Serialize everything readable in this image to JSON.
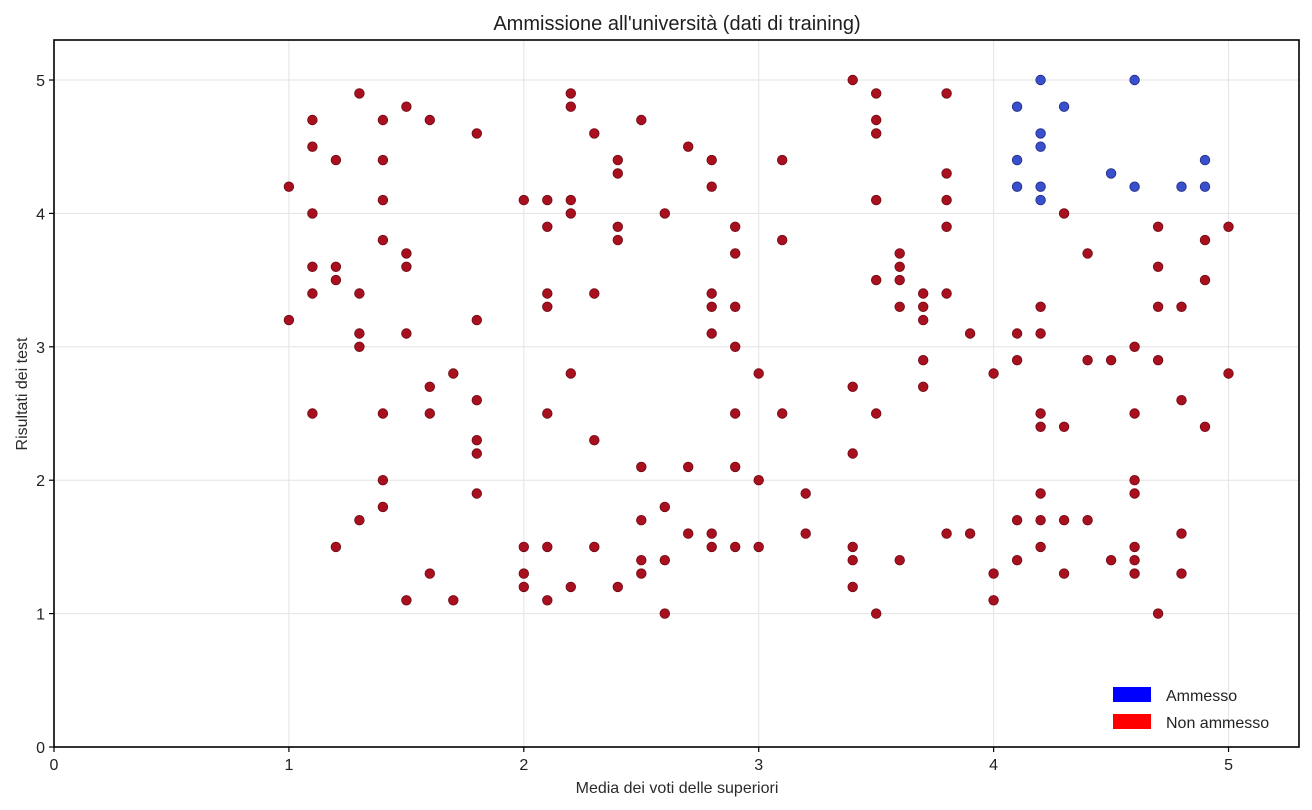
{
  "chart_data": {
    "type": "scatter",
    "title": "Ammissione all'università (dati di training)",
    "xlabel": "Media dei voti delle superiori",
    "ylabel": "Risultati dei test",
    "xlim": [
      0,
      5.3
    ],
    "ylim": [
      0,
      5.3
    ],
    "x_ticks": [
      0,
      1,
      2,
      3,
      4,
      5
    ],
    "y_ticks": [
      0,
      1,
      2,
      3,
      4,
      5
    ],
    "grid": true,
    "legend_position": "bottom-right",
    "legend": [
      {
        "label": "Ammesso",
        "color": "#0000ff"
      },
      {
        "label": "Non ammesso",
        "color": "#ff0000"
      }
    ],
    "series": [
      {
        "name": "Ammesso",
        "color": "#3a4fcc",
        "points": [
          [
            4.1,
            4.8
          ],
          [
            4.1,
            4.4
          ],
          [
            4.1,
            4.2
          ],
          [
            4.2,
            5.0
          ],
          [
            4.2,
            4.6
          ],
          [
            4.2,
            4.5
          ],
          [
            4.2,
            4.2
          ],
          [
            4.2,
            4.1
          ],
          [
            4.3,
            4.8
          ],
          [
            4.5,
            4.3
          ],
          [
            4.6,
            5.0
          ],
          [
            4.6,
            4.2
          ],
          [
            4.8,
            4.2
          ],
          [
            4.9,
            4.4
          ],
          [
            4.9,
            4.2
          ]
        ]
      },
      {
        "name": "Non ammesso",
        "color": "#a8101f",
        "points": [
          [
            1.0,
            4.2
          ],
          [
            1.0,
            3.2
          ],
          [
            1.1,
            4.7
          ],
          [
            1.1,
            4.5
          ],
          [
            1.1,
            4.0
          ],
          [
            1.1,
            3.6
          ],
          [
            1.1,
            3.4
          ],
          [
            1.1,
            2.5
          ],
          [
            1.2,
            4.4
          ],
          [
            1.2,
            3.6
          ],
          [
            1.2,
            3.5
          ],
          [
            1.2,
            1.5
          ],
          [
            1.3,
            4.9
          ],
          [
            1.3,
            3.4
          ],
          [
            1.3,
            3.1
          ],
          [
            1.3,
            3.0
          ],
          [
            1.3,
            1.7
          ],
          [
            1.4,
            4.7
          ],
          [
            1.4,
            4.4
          ],
          [
            1.4,
            4.1
          ],
          [
            1.4,
            3.8
          ],
          [
            1.4,
            2.5
          ],
          [
            1.4,
            2.0
          ],
          [
            1.4,
            1.8
          ],
          [
            1.5,
            4.8
          ],
          [
            1.5,
            3.7
          ],
          [
            1.5,
            3.6
          ],
          [
            1.5,
            3.1
          ],
          [
            1.5,
            1.1
          ],
          [
            1.6,
            4.7
          ],
          [
            1.6,
            2.7
          ],
          [
            1.6,
            2.5
          ],
          [
            1.6,
            1.3
          ],
          [
            1.7,
            2.8
          ],
          [
            1.7,
            1.1
          ],
          [
            1.8,
            4.6
          ],
          [
            1.8,
            3.2
          ],
          [
            1.8,
            2.6
          ],
          [
            1.8,
            2.3
          ],
          [
            1.8,
            2.2
          ],
          [
            1.8,
            1.9
          ],
          [
            2.0,
            4.1
          ],
          [
            2.0,
            1.5
          ],
          [
            2.0,
            1.3
          ],
          [
            2.0,
            1.2
          ],
          [
            2.1,
            4.1
          ],
          [
            2.1,
            3.9
          ],
          [
            2.1,
            3.4
          ],
          [
            2.1,
            3.3
          ],
          [
            2.1,
            2.5
          ],
          [
            2.1,
            1.5
          ],
          [
            2.1,
            1.1
          ],
          [
            2.2,
            4.9
          ],
          [
            2.2,
            4.8
          ],
          [
            2.2,
            4.1
          ],
          [
            2.2,
            4.0
          ],
          [
            2.2,
            2.8
          ],
          [
            2.2,
            1.2
          ],
          [
            2.3,
            4.6
          ],
          [
            2.3,
            3.4
          ],
          [
            2.3,
            2.3
          ],
          [
            2.3,
            1.5
          ],
          [
            2.4,
            4.4
          ],
          [
            2.4,
            4.3
          ],
          [
            2.4,
            3.9
          ],
          [
            2.4,
            3.8
          ],
          [
            2.4,
            1.2
          ],
          [
            2.5,
            4.7
          ],
          [
            2.5,
            2.1
          ],
          [
            2.5,
            1.7
          ],
          [
            2.5,
            1.4
          ],
          [
            2.5,
            1.3
          ],
          [
            2.6,
            4.0
          ],
          [
            2.6,
            1.8
          ],
          [
            2.6,
            1.4
          ],
          [
            2.6,
            1.0
          ],
          [
            2.7,
            4.5
          ],
          [
            2.7,
            2.1
          ],
          [
            2.7,
            1.6
          ],
          [
            2.8,
            4.4
          ],
          [
            2.8,
            4.2
          ],
          [
            2.8,
            3.4
          ],
          [
            2.8,
            3.3
          ],
          [
            2.8,
            3.1
          ],
          [
            2.8,
            1.6
          ],
          [
            2.8,
            1.5
          ],
          [
            2.9,
            3.9
          ],
          [
            2.9,
            3.7
          ],
          [
            2.9,
            3.3
          ],
          [
            2.9,
            3.0
          ],
          [
            2.9,
            2.5
          ],
          [
            2.9,
            2.1
          ],
          [
            2.9,
            1.5
          ],
          [
            3.0,
            2.8
          ],
          [
            3.0,
            2.0
          ],
          [
            3.0,
            1.5
          ],
          [
            3.1,
            4.4
          ],
          [
            3.1,
            3.8
          ],
          [
            3.1,
            2.5
          ],
          [
            3.2,
            1.9
          ],
          [
            3.2,
            1.6
          ],
          [
            3.4,
            5.0
          ],
          [
            3.4,
            2.7
          ],
          [
            3.4,
            2.2
          ],
          [
            3.4,
            1.5
          ],
          [
            3.4,
            1.4
          ],
          [
            3.4,
            1.2
          ],
          [
            3.5,
            4.9
          ],
          [
            3.5,
            4.7
          ],
          [
            3.5,
            4.6
          ],
          [
            3.5,
            4.1
          ],
          [
            3.5,
            3.5
          ],
          [
            3.5,
            2.5
          ],
          [
            3.5,
            1.0
          ],
          [
            3.6,
            3.7
          ],
          [
            3.6,
            3.6
          ],
          [
            3.6,
            3.5
          ],
          [
            3.6,
            3.3
          ],
          [
            3.6,
            1.4
          ],
          [
            3.7,
            3.4
          ],
          [
            3.7,
            3.3
          ],
          [
            3.7,
            3.2
          ],
          [
            3.7,
            2.9
          ],
          [
            3.7,
            2.7
          ],
          [
            3.8,
            4.9
          ],
          [
            3.8,
            4.3
          ],
          [
            3.8,
            4.1
          ],
          [
            3.8,
            3.9
          ],
          [
            3.8,
            3.4
          ],
          [
            3.8,
            1.6
          ],
          [
            3.9,
            3.1
          ],
          [
            3.9,
            1.6
          ],
          [
            4.0,
            2.8
          ],
          [
            4.0,
            1.3
          ],
          [
            4.0,
            1.1
          ],
          [
            4.1,
            3.1
          ],
          [
            4.1,
            2.9
          ],
          [
            4.1,
            1.7
          ],
          [
            4.1,
            1.4
          ],
          [
            4.2,
            3.3
          ],
          [
            4.2,
            3.1
          ],
          [
            4.2,
            2.5
          ],
          [
            4.2,
            2.4
          ],
          [
            4.2,
            1.9
          ],
          [
            4.2,
            1.7
          ],
          [
            4.2,
            1.5
          ],
          [
            4.3,
            4.0
          ],
          [
            4.3,
            2.4
          ],
          [
            4.3,
            1.7
          ],
          [
            4.3,
            1.3
          ],
          [
            4.4,
            3.7
          ],
          [
            4.4,
            2.9
          ],
          [
            4.4,
            1.7
          ],
          [
            4.5,
            2.9
          ],
          [
            4.5,
            1.4
          ],
          [
            4.6,
            3.0
          ],
          [
            4.6,
            2.5
          ],
          [
            4.6,
            2.0
          ],
          [
            4.6,
            1.9
          ],
          [
            4.6,
            1.5
          ],
          [
            4.6,
            1.4
          ],
          [
            4.6,
            1.3
          ],
          [
            4.7,
            3.9
          ],
          [
            4.7,
            3.6
          ],
          [
            4.7,
            3.3
          ],
          [
            4.7,
            2.9
          ],
          [
            4.7,
            1.0
          ],
          [
            4.8,
            3.3
          ],
          [
            4.8,
            2.6
          ],
          [
            4.8,
            1.6
          ],
          [
            4.8,
            1.3
          ],
          [
            4.9,
            3.8
          ],
          [
            4.9,
            3.5
          ],
          [
            4.9,
            2.4
          ],
          [
            5.0,
            3.9
          ],
          [
            5.0,
            2.8
          ]
        ]
      }
    ]
  }
}
